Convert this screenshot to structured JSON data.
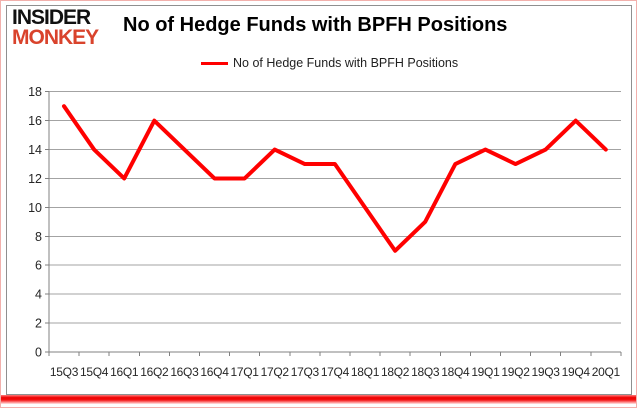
{
  "brand": {
    "line1": "INSIDER",
    "line2": "MONKEY",
    "monkey_color": "#d9432c",
    "insider_color": "#111111"
  },
  "header": {
    "title": "No of Hedge Funds with BPFH Positions"
  },
  "legend": {
    "label": "No of Hedge Funds with BPFH Positions",
    "color": "#ff0000"
  },
  "footer": {
    "accent_color": "#ee0000"
  },
  "chart_data": {
    "type": "line",
    "title": "No of Hedge Funds with BPFH Positions",
    "categories": [
      "15Q3",
      "15Q4",
      "16Q1",
      "16Q2",
      "16Q3",
      "16Q4",
      "17Q1",
      "17Q2",
      "17Q3",
      "17Q4",
      "18Q1",
      "18Q2",
      "18Q3",
      "18Q4",
      "19Q1",
      "19Q2",
      "19Q3",
      "19Q4",
      "20Q1"
    ],
    "series": [
      {
        "name": "No of Hedge Funds with BPFH Positions",
        "color": "#ff0000",
        "values": [
          17,
          14,
          12,
          16,
          14,
          12,
          12,
          14,
          13,
          13,
          10,
          7,
          9,
          13,
          14,
          13,
          14,
          16,
          14
        ]
      }
    ],
    "xlabel": "",
    "ylabel": "",
    "ylim": [
      0,
      18
    ],
    "yticks": [
      0,
      2,
      4,
      6,
      8,
      10,
      12,
      14,
      16,
      18
    ],
    "grid": "horizontal",
    "gridline_color": "#a3a3a3",
    "axis_color": "#808080",
    "tick_label_color": "#262626",
    "legend_position": "top-center"
  }
}
